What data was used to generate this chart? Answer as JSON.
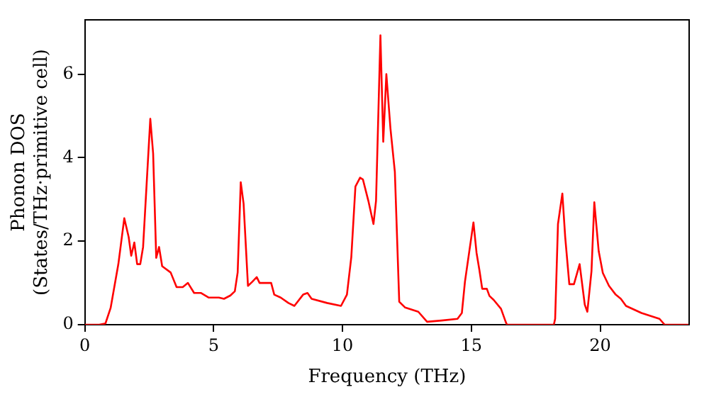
{
  "chart_data": {
    "type": "line",
    "xlabel": "Frequency (THz)",
    "ylabel": "Phonon DOS\n(States/THz·primitive cell)",
    "xlim": [
      0,
      23.45
    ],
    "xticks": [
      0,
      5,
      10,
      15,
      20
    ],
    "ylim": [
      0,
      7.3
    ],
    "yticks": [
      0,
      2,
      4,
      6
    ],
    "grid": false,
    "legend": false,
    "marker": "none",
    "line_style": "solid",
    "series": [
      {
        "color": "#ff0000",
        "x": [
          0,
          0.56,
          0.8,
          1.0,
          1.3,
          1.53,
          1.7,
          1.8,
          1.92,
          2.03,
          2.15,
          2.26,
          2.54,
          2.65,
          2.77,
          2.88,
          3.0,
          3.33,
          3.56,
          3.8,
          4.0,
          4.24,
          4.5,
          4.8,
          5.2,
          5.4,
          5.65,
          5.82,
          5.93,
          6.05,
          6.16,
          6.33,
          6.5,
          6.67,
          6.78,
          7.1,
          7.23,
          7.35,
          7.6,
          7.9,
          8.13,
          8.47,
          8.64,
          8.8,
          9.4,
          9.94,
          10.17,
          10.34,
          10.5,
          10.68,
          10.79,
          11.0,
          11.2,
          11.3,
          11.47,
          11.58,
          11.7,
          11.86,
          12.03,
          12.2,
          12.43,
          12.94,
          13.28,
          13.84,
          14.46,
          14.63,
          14.75,
          15.08,
          15.2,
          15.31,
          15.42,
          15.6,
          15.7,
          15.87,
          16.15,
          16.33,
          16.38,
          18.2,
          18.25,
          18.36,
          18.53,
          18.64,
          18.8,
          18.98,
          19.2,
          19.4,
          19.5,
          19.66,
          19.77,
          19.94,
          20.1,
          20.34,
          20.6,
          20.8,
          21.0,
          21.6,
          22.3,
          22.5,
          23.45
        ],
        "values": [
          0,
          0,
          0.03,
          0.4,
          1.45,
          2.55,
          2.1,
          1.65,
          1.97,
          1.45,
          1.45,
          1.86,
          4.93,
          4.1,
          1.6,
          1.86,
          1.4,
          1.25,
          0.9,
          0.9,
          1.0,
          0.76,
          0.76,
          0.65,
          0.65,
          0.62,
          0.7,
          0.8,
          1.25,
          3.41,
          2.9,
          0.93,
          1.03,
          1.14,
          1.0,
          1.0,
          1.0,
          0.72,
          0.65,
          0.52,
          0.45,
          0.72,
          0.76,
          0.62,
          0.52,
          0.45,
          0.72,
          1.62,
          3.31,
          3.52,
          3.48,
          2.97,
          2.41,
          2.97,
          6.93,
          4.38,
          6.0,
          4.69,
          3.66,
          0.55,
          0.41,
          0.31,
          0.07,
          0.1,
          0.14,
          0.28,
          1.03,
          2.45,
          1.72,
          1.31,
          0.86,
          0.86,
          0.69,
          0.59,
          0.38,
          0.07,
          0,
          0,
          0.14,
          2.41,
          3.14,
          2.1,
          0.97,
          0.97,
          1.45,
          0.48,
          0.31,
          1.28,
          2.93,
          1.76,
          1.24,
          0.93,
          0.72,
          0.62,
          0.45,
          0.28,
          0.14,
          0,
          0
        ]
      }
    ]
  }
}
